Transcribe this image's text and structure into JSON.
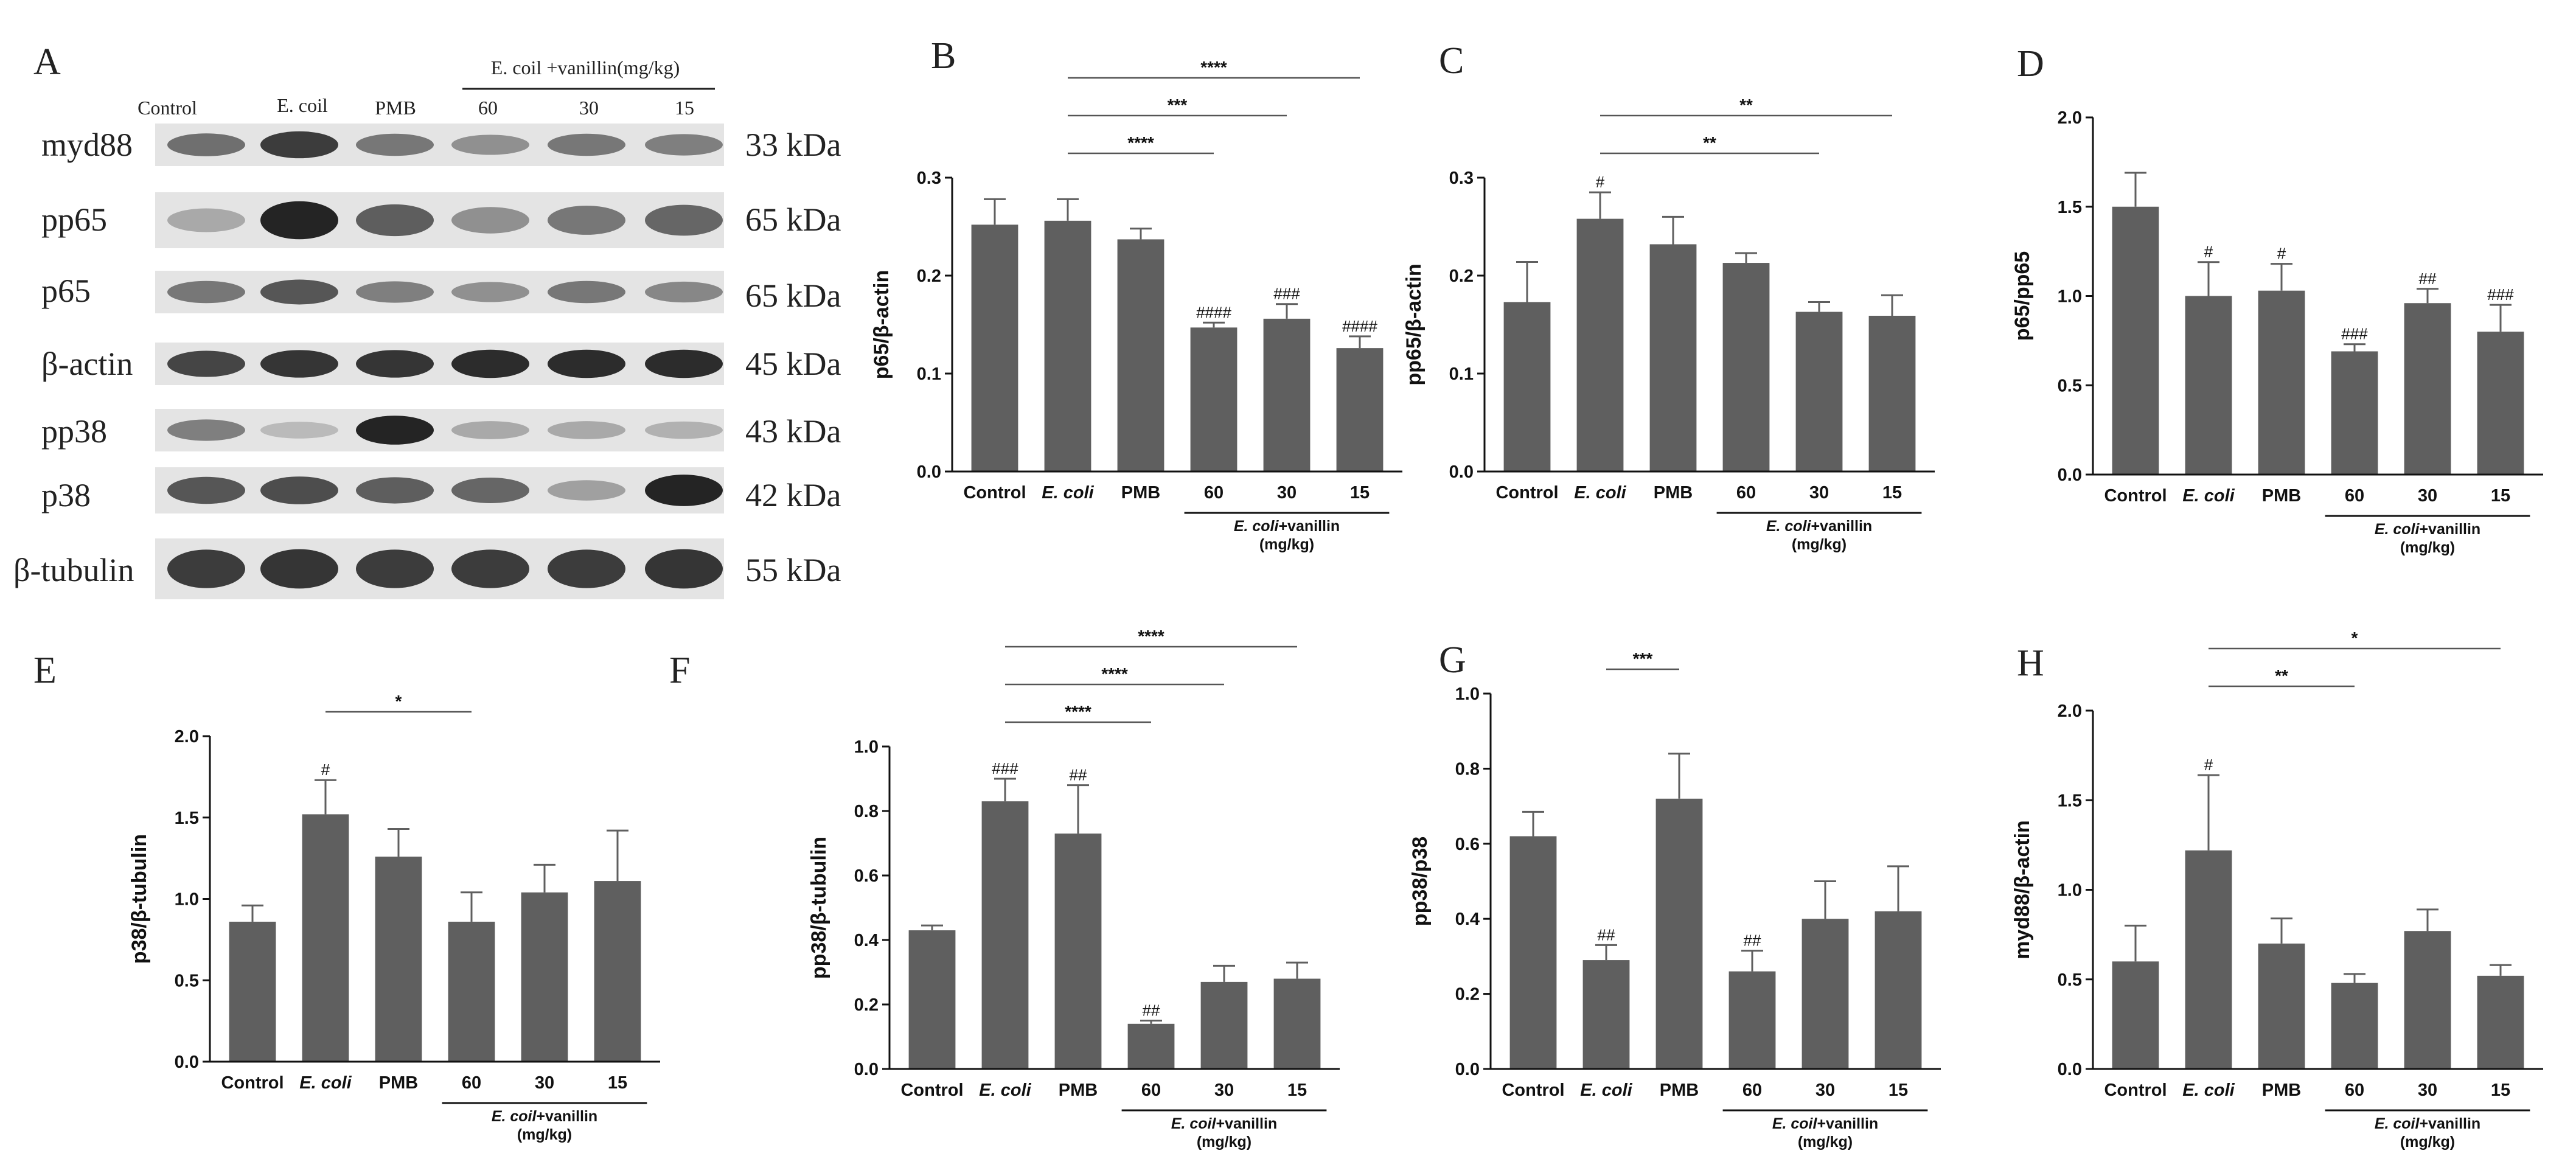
{
  "blot": {
    "letter": "A",
    "lanes": [
      "Control",
      "E. coil",
      "PMB",
      "60",
      "30",
      "15"
    ],
    "group_label": "E. coil +vanillin(mg/kg)",
    "rows": [
      {
        "protein": "myd88",
        "kda": "33 kDa",
        "intensity": [
          0.55,
          0.85,
          0.5,
          0.35,
          0.5,
          0.45
        ]
      },
      {
        "protein": "pp65",
        "kda": "65 kDa",
        "intensity": [
          0.2,
          1.0,
          0.65,
          0.35,
          0.5,
          0.6
        ]
      },
      {
        "protein": "p65",
        "kda": "65 kDa",
        "intensity": [
          0.5,
          0.7,
          0.45,
          0.35,
          0.5,
          0.4
        ]
      },
      {
        "protein": "β-actin",
        "kda": "45 kDa",
        "intensity": [
          0.8,
          0.9,
          0.9,
          0.95,
          0.95,
          0.95
        ]
      },
      {
        "protein": "pp38",
        "kda": "43 kDa",
        "intensity": [
          0.45,
          0.1,
          1.0,
          0.2,
          0.2,
          0.15
        ]
      },
      {
        "protein": "p38",
        "kda": "42 kDa",
        "intensity": [
          0.7,
          0.75,
          0.65,
          0.6,
          0.25,
          1.0
        ]
      },
      {
        "protein": "β-tubulin",
        "kda": "55 kDa",
        "intensity": [
          0.85,
          0.9,
          0.85,
          0.85,
          0.85,
          0.9
        ]
      }
    ]
  },
  "chart_data": [
    {
      "letter": "B",
      "type": "bar",
      "ylabel": "p65/β-actin",
      "ylim": [
        0,
        0.3
      ],
      "yticks": [
        "0.0",
        "0.1",
        "0.2",
        "0.3"
      ],
      "categories": [
        "Control",
        "E. coli",
        "PMB",
        "60",
        "30",
        "15"
      ],
      "group_label_1": "E. coli+vanillin",
      "group_label_2": "(mg/kg)",
      "values": [
        0.252,
        0.256,
        0.237,
        0.147,
        0.156,
        0.126
      ],
      "errors": [
        0.026,
        0.022,
        0.011,
        0.005,
        0.015,
        0.012
      ],
      "bar_annotations": [
        "",
        "",
        "",
        "####",
        "###",
        "####"
      ],
      "brackets": [
        {
          "from": 1,
          "to": 5,
          "label": "****"
        },
        {
          "from": 1,
          "to": 4,
          "label": "***"
        },
        {
          "from": 1,
          "to": 3,
          "label": "****"
        }
      ]
    },
    {
      "letter": "C",
      "type": "bar",
      "ylabel": "pp65/β-actin",
      "ylim": [
        0,
        0.3
      ],
      "yticks": [
        "0.0",
        "0.1",
        "0.2",
        "0.3"
      ],
      "categories": [
        "Control",
        "E. coli",
        "PMB",
        "60",
        "30",
        "15"
      ],
      "group_label_1": "E. coli+vanillin",
      "group_label_2": "(mg/kg)",
      "values": [
        0.173,
        0.258,
        0.232,
        0.213,
        0.163,
        0.159
      ],
      "errors": [
        0.041,
        0.027,
        0.028,
        0.01,
        0.01,
        0.021
      ],
      "bar_annotations": [
        "",
        "#",
        "",
        "",
        "",
        ""
      ],
      "brackets": [
        {
          "from": 1,
          "to": 5,
          "label": "**"
        },
        {
          "from": 1,
          "to": 4,
          "label": "**"
        }
      ]
    },
    {
      "letter": "D",
      "type": "bar",
      "ylabel": "p65/pp65",
      "ylim": [
        0,
        2.0
      ],
      "yticks": [
        "0.0",
        "0.5",
        "1.0",
        "1.5",
        "2.0"
      ],
      "categories": [
        "Control",
        "E. coli",
        "PMB",
        "60",
        "30",
        "15"
      ],
      "group_label_1": "E. coli+vanillin",
      "group_label_2": "(mg/kg)",
      "values": [
        1.5,
        1.0,
        1.03,
        0.69,
        0.96,
        0.8
      ],
      "errors": [
        0.19,
        0.19,
        0.15,
        0.04,
        0.08,
        0.15
      ],
      "bar_annotations": [
        "",
        "#",
        "#",
        "###",
        "##",
        "###"
      ],
      "brackets": []
    },
    {
      "letter": "E",
      "type": "bar",
      "ylabel": "p38/β-tubulin",
      "ylim": [
        0,
        2.0
      ],
      "yticks": [
        "0.0",
        "0.5",
        "1.0",
        "1.5",
        "2.0"
      ],
      "categories": [
        "Control",
        "E. coli",
        "PMB",
        "60",
        "30",
        "15"
      ],
      "group_label_1": "E. coil+vanillin",
      "group_label_2": "(mg/kg)",
      "values": [
        0.86,
        1.52,
        1.26,
        0.86,
        1.04,
        1.11
      ],
      "errors": [
        0.1,
        0.21,
        0.17,
        0.18,
        0.17,
        0.31
      ],
      "bar_annotations": [
        "",
        "#",
        "",
        "",
        "",
        ""
      ],
      "brackets": [
        {
          "from": 1,
          "to": 3,
          "label": "*"
        }
      ]
    },
    {
      "letter": "F",
      "type": "bar",
      "ylabel": "pp38/β-tubulin",
      "ylim": [
        0,
        1.0
      ],
      "yticks": [
        "0.0",
        "0.2",
        "0.4",
        "0.6",
        "0.8",
        "1.0"
      ],
      "categories": [
        "Control",
        "E. coli",
        "PMB",
        "60",
        "30",
        "15"
      ],
      "group_label_1": "E. coil+vanillin",
      "group_label_2": "(mg/kg)",
      "values": [
        0.43,
        0.83,
        0.73,
        0.14,
        0.27,
        0.28
      ],
      "errors": [
        0.015,
        0.07,
        0.15,
        0.01,
        0.05,
        0.05
      ],
      "bar_annotations": [
        "",
        "###",
        "##",
        "##",
        "",
        ""
      ],
      "brackets": [
        {
          "from": 1,
          "to": 5,
          "label": "****"
        },
        {
          "from": 1,
          "to": 4,
          "label": "****"
        },
        {
          "from": 1,
          "to": 3,
          "label": "****"
        }
      ]
    },
    {
      "letter": "G",
      "type": "bar",
      "ylabel": "pp38/p38",
      "ylim": [
        0,
        1.0
      ],
      "yticks": [
        "0.0",
        "0.2",
        "0.4",
        "0.6",
        "0.8",
        "1.0"
      ],
      "categories": [
        "Control",
        "E. coli",
        "PMB",
        "60",
        "30",
        "15"
      ],
      "group_label_1": "E. coil+vanillin",
      "group_label_2": "(mg/kg)",
      "values": [
        0.62,
        0.29,
        0.72,
        0.26,
        0.4,
        0.42
      ],
      "errors": [
        0.065,
        0.04,
        0.12,
        0.055,
        0.1,
        0.12
      ],
      "bar_annotations": [
        "",
        "##",
        "",
        "##",
        "",
        ""
      ],
      "brackets": [
        {
          "from": 1,
          "to": 2,
          "label": "***"
        }
      ]
    },
    {
      "letter": "H",
      "type": "bar",
      "ylabel": "myd88/β-actin",
      "ylim": [
        0,
        2.0
      ],
      "yticks": [
        "0.0",
        "0.5",
        "1.0",
        "1.5",
        "2.0"
      ],
      "categories": [
        "Control",
        "E. coli",
        "PMB",
        "60",
        "30",
        "15"
      ],
      "group_label_1": "E. coil+vanillin",
      "group_label_2": "(mg/kg)",
      "values": [
        0.6,
        1.22,
        0.7,
        0.48,
        0.77,
        0.52
      ],
      "errors": [
        0.2,
        0.42,
        0.14,
        0.05,
        0.12,
        0.06
      ],
      "bar_annotations": [
        "",
        "#",
        "",
        "",
        "",
        ""
      ],
      "brackets": [
        {
          "from": 1,
          "to": 5,
          "label": "*"
        },
        {
          "from": 1,
          "to": 3,
          "label": "**"
        }
      ]
    }
  ]
}
